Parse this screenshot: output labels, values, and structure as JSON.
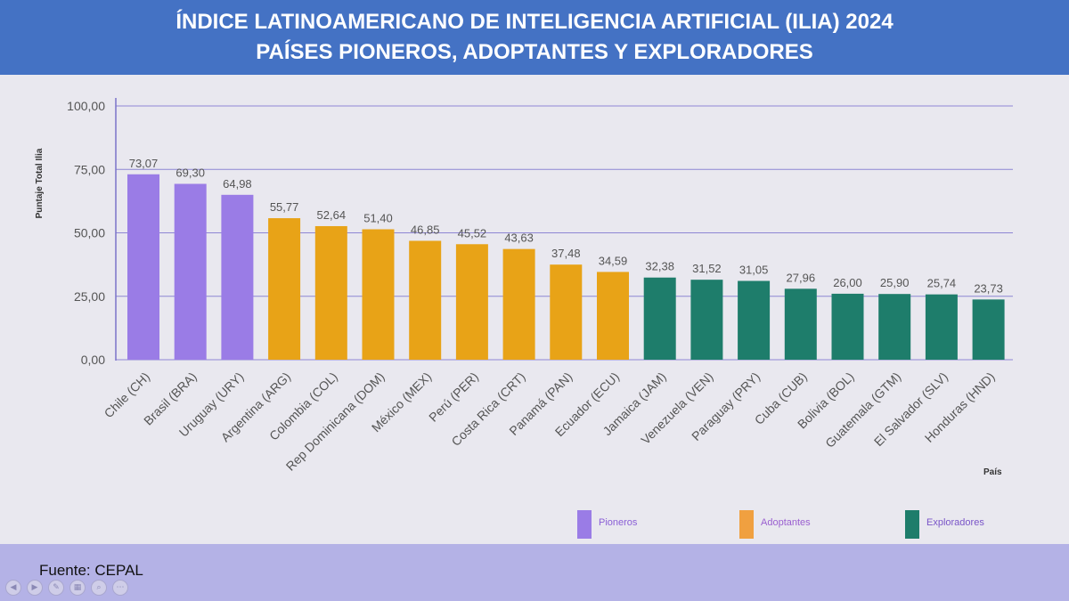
{
  "header": {
    "title_line1": "ÍNDICE LATINOAMERICANO DE INTELIGENCIA ARTIFICIAL (ILIA) 2024",
    "title_line2": "PAÍSES PIONEROS, ADOPTANTES Y EXPLORADORES"
  },
  "footer": {
    "source": "Fuente: CEPAL"
  },
  "chart_data": {
    "type": "bar",
    "ylabel": "Puntaje Total Ilia",
    "xlabel": "País",
    "ylim": [
      0,
      100
    ],
    "yticks": [
      "0,00",
      "25,00",
      "50,00",
      "75,00",
      "100,00"
    ],
    "ytick_values": [
      0,
      25,
      50,
      75,
      100
    ],
    "grid": true,
    "legend_position": "bottom",
    "categories": [
      "Chile (CH)",
      "Brasil (BRA)",
      "Uruguay (URY)",
      "Argentina (ARG)",
      "Colombia (COL)",
      "Rep Dominicana (DOM)",
      "México (MEX)",
      "Perú (PER)",
      "Costa Rica (CRT)",
      "Panamá (PAN)",
      "Ecuador (ECU)",
      "Jamaica (JAM)",
      "Venezuela (VEN)",
      "Paraguay (PRY)",
      "Cuba (CUB)",
      "Bolivia (BOL)",
      "Guatemala (GTM)",
      "El Salvador (SLV)",
      "Honduras (HND)"
    ],
    "values": [
      73.07,
      69.3,
      64.98,
      55.77,
      52.64,
      51.4,
      46.85,
      45.52,
      43.63,
      37.48,
      34.59,
      32.38,
      31.52,
      31.05,
      27.96,
      26.0,
      25.9,
      25.74,
      23.73
    ],
    "value_labels": [
      "73,07",
      "69,30",
      "64,98",
      "55,77",
      "52,64",
      "51,40",
      "46,85",
      "45,52",
      "43,63",
      "37,48",
      "34,59",
      "32,38",
      "31,52",
      "31,05",
      "27,96",
      "26,00",
      "25,90",
      "25,74",
      "23,73"
    ],
    "groups": [
      "Pioneros",
      "Pioneros",
      "Pioneros",
      "Adoptantes",
      "Adoptantes",
      "Adoptantes",
      "Adoptantes",
      "Adoptantes",
      "Adoptantes",
      "Adoptantes",
      "Adoptantes",
      "Exploradores",
      "Exploradores",
      "Exploradores",
      "Exploradores",
      "Exploradores",
      "Exploradores",
      "Exploradores",
      "Exploradores"
    ],
    "legend": [
      {
        "name": "Pioneros",
        "color": "#9a7ce6",
        "text_color": "#8a5fd6"
      },
      {
        "name": "Adoptantes",
        "color": "#f0a040",
        "text_color": "#9a5fd0"
      },
      {
        "name": "Exploradores",
        "color": "#1e7d6b",
        "text_color": "#7a55c8"
      }
    ],
    "bar_colors": {
      "Pioneros": "#9a7ce6",
      "Adoptantes": "#e8a317",
      "Exploradores": "#1e7d6b"
    }
  }
}
